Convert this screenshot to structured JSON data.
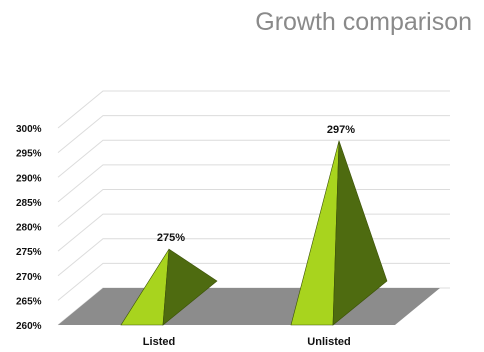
{
  "chart_data": {
    "type": "bar",
    "title": "Growth comparison",
    "categories": [
      "Listed",
      "Unlisted"
    ],
    "values": [
      275,
      297
    ],
    "data_labels": [
      "275%",
      "297%"
    ],
    "ylim": [
      260,
      300
    ],
    "yticks": [
      "260%",
      "265%",
      "270%",
      "275%",
      "280%",
      "285%",
      "290%",
      "295%",
      "300%"
    ],
    "xlabel": "",
    "ylabel": "",
    "grid": true,
    "style": "3d-pyramid",
    "colors": {
      "face_light": "#a8d41e",
      "face_dark": "#4e6b10",
      "floor": "#8c8c8c",
      "grid": "#dcdcdc"
    }
  }
}
